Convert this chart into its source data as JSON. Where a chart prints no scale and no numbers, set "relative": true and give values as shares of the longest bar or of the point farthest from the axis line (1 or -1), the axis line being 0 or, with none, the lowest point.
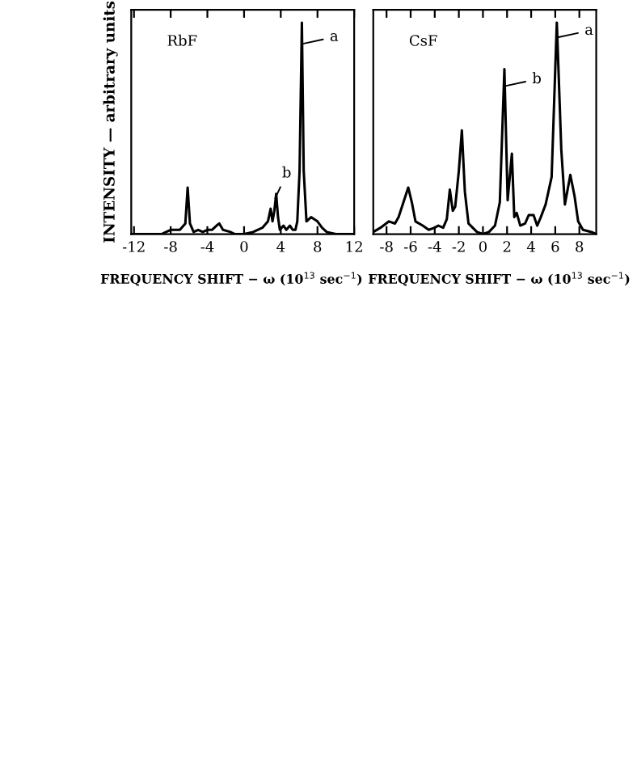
{
  "chart_data": [
    {
      "type": "line",
      "relative": true,
      "ylabel": "INTENSITY — arbitrary units",
      "xlabel": "FREQUENCY SHIFT − ω (10$^{13}$ sec$^{−1}$)",
      "xlim": [
        -12.3,
        12
      ],
      "xticks": [
        -12,
        -8,
        -4,
        0,
        4,
        8,
        12
      ],
      "tick_labels": "x",
      "grid": false,
      "legend": false,
      "marker": "none",
      "line_style": "solid",
      "annotations": [
        "RbF",
        {
          "text": "a",
          "x": 6.4,
          "y": 0.9
        },
        {
          "text": "b",
          "x": 3.4,
          "y": 0.17
        }
      ],
      "series": [
        {
          "color": "#000000",
          "x": [
            -12.3,
            -9,
            -8.5,
            -8,
            -7,
            -6.4,
            -6.15,
            -5.9,
            -5.5,
            -5,
            -4.5,
            -4,
            -3.5,
            -3,
            -2.7,
            -2.3,
            -1.5,
            -1,
            0,
            1,
            2,
            2.6,
            2.9,
            3.1,
            3.3,
            3.5,
            3.7,
            3.9,
            4.3,
            4.6,
            5,
            5.3,
            5.6,
            5.8,
            6.05,
            6.3,
            6.5,
            6.8,
            7.3,
            8,
            8.5,
            9,
            10,
            12
          ],
          "values": [
            0,
            0,
            0.01,
            0.02,
            0.02,
            0.05,
            0.22,
            0.05,
            0.01,
            0.02,
            0.01,
            0.02,
            0.02,
            0.04,
            0.05,
            0.02,
            0.01,
            0,
            0,
            0.01,
            0.03,
            0.06,
            0.12,
            0.06,
            0.11,
            0.19,
            0.08,
            0.02,
            0.04,
            0.02,
            0.04,
            0.02,
            0.02,
            0.06,
            0.3,
            1.0,
            0.3,
            0.06,
            0.08,
            0.06,
            0.03,
            0.01,
            0,
            0
          ]
        }
      ]
    },
    {
      "type": "line",
      "relative": true,
      "xlabel": "FREQUENCY SHIFT − ω (10$^{13}$ sec$^{−1}$)",
      "xlim": [
        -9.1,
        9.4
      ],
      "xticks": [
        -8,
        -6,
        -4,
        -2,
        0,
        2,
        4,
        6,
        8
      ],
      "tick_labels": "x",
      "grid": false,
      "legend": false,
      "marker": "none",
      "line_style": "solid",
      "annotations": [
        "CsF",
        {
          "text": "a",
          "x": 6.2,
          "y": 0.93
        },
        {
          "text": "b",
          "x": 1.85,
          "y": 0.7
        }
      ],
      "series": [
        {
          "color": "#000000",
          "x": [
            -9.1,
            -8.5,
            -7.8,
            -7.3,
            -7,
            -6.6,
            -6.2,
            -5.9,
            -5.6,
            -5,
            -4.5,
            -4,
            -3.7,
            -3.3,
            -3,
            -2.75,
            -2.5,
            -2.3,
            -2.0,
            -1.75,
            -1.5,
            -1.2,
            -0.5,
            0,
            0.5,
            1,
            1.4,
            1.78,
            2.05,
            2.4,
            2.6,
            2.8,
            3.1,
            3.5,
            3.8,
            4.2,
            4.5,
            4.8,
            5.2,
            5.7,
            6.13,
            6.5,
            6.8,
            7.25,
            7.6,
            7.9,
            8.3,
            9,
            9.4
          ],
          "values": [
            0.01,
            0.03,
            0.06,
            0.05,
            0.08,
            0.15,
            0.22,
            0.15,
            0.06,
            0.04,
            0.02,
            0.03,
            0.04,
            0.03,
            0.07,
            0.21,
            0.11,
            0.13,
            0.3,
            0.49,
            0.2,
            0.05,
            0.01,
            0,
            0.01,
            0.04,
            0.15,
            0.78,
            0.16,
            0.38,
            0.08,
            0.1,
            0.04,
            0.05,
            0.09,
            0.09,
            0.04,
            0.08,
            0.14,
            0.27,
            1.0,
            0.4,
            0.14,
            0.28,
            0.18,
            0.06,
            0.02,
            0.01,
            0
          ]
        }
      ]
    }
  ]
}
